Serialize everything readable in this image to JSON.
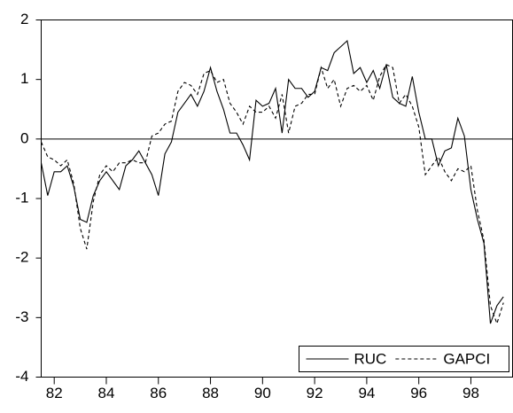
{
  "chart_data": {
    "type": "line",
    "x": [
      81.5,
      81.75,
      82,
      82.25,
      82.5,
      82.75,
      83,
      83.25,
      83.5,
      83.75,
      84,
      84.25,
      84.5,
      84.75,
      85,
      85.25,
      85.5,
      85.75,
      86,
      86.25,
      86.5,
      86.75,
      87,
      87.25,
      87.5,
      87.75,
      88,
      88.25,
      88.5,
      88.75,
      89,
      89.25,
      89.5,
      89.75,
      90,
      90.25,
      90.5,
      90.75,
      91,
      91.25,
      91.5,
      91.75,
      92,
      92.25,
      92.5,
      92.75,
      93,
      93.25,
      93.5,
      93.75,
      94,
      94.25,
      94.5,
      94.75,
      95,
      95.25,
      95.5,
      95.75,
      96,
      96.25,
      96.5,
      96.75,
      97,
      97.25,
      97.5,
      97.75,
      98,
      98.25,
      98.5,
      98.75,
      99,
      99.25
    ],
    "series": [
      {
        "name": "RUC",
        "color": "#000000",
        "dash": "none",
        "values": [
          -0.4,
          -0.95,
          -0.55,
          -0.55,
          -0.45,
          -0.8,
          -1.35,
          -1.4,
          -0.95,
          -0.7,
          -0.55,
          -0.7,
          -0.85,
          -0.45,
          -0.35,
          -0.2,
          -0.4,
          -0.6,
          -0.95,
          -0.25,
          -0.05,
          0.45,
          0.6,
          0.75,
          0.55,
          0.8,
          1.2,
          0.8,
          0.5,
          0.1,
          0.1,
          -0.1,
          -0.35,
          0.65,
          0.55,
          0.6,
          0.85,
          0.1,
          1.0,
          0.85,
          0.85,
          0.7,
          0.8,
          1.2,
          1.15,
          1.45,
          1.55,
          1.65,
          1.1,
          1.2,
          0.95,
          1.15,
          0.85,
          1.25,
          0.7,
          0.6,
          0.55,
          1.05,
          0.45,
          0.0,
          0.0,
          -0.45,
          -0.2,
          -0.15,
          0.35,
          0.05,
          -0.85,
          -1.35,
          -1.75,
          -3.1,
          -2.8,
          -2.65
        ]
      },
      {
        "name": "GAPCI",
        "color": "#000000",
        "dash": "4,3",
        "values": [
          -0.05,
          -0.3,
          -0.35,
          -0.45,
          -0.35,
          -0.75,
          -1.5,
          -1.85,
          -1.05,
          -0.6,
          -0.45,
          -0.55,
          -0.4,
          -0.4,
          -0.35,
          -0.4,
          -0.4,
          0.05,
          0.1,
          0.25,
          0.3,
          0.8,
          0.95,
          0.9,
          0.75,
          1.1,
          1.15,
          0.95,
          1.0,
          0.6,
          0.45,
          0.25,
          0.55,
          0.45,
          0.45,
          0.55,
          0.35,
          0.75,
          0.1,
          0.55,
          0.6,
          0.75,
          0.75,
          1.2,
          0.85,
          1.0,
          0.55,
          0.85,
          0.9,
          0.8,
          0.9,
          0.65,
          1.05,
          1.25,
          1.2,
          0.6,
          0.75,
          0.55,
          0.2,
          -0.6,
          -0.45,
          -0.3,
          -0.55,
          -0.7,
          -0.5,
          -0.55,
          -0.45,
          -1.2,
          -1.7,
          -2.8,
          -3.1,
          -2.75
        ]
      }
    ],
    "xlim": [
      81.5,
      99.6
    ],
    "xticks": [
      82,
      84,
      86,
      88,
      90,
      92,
      94,
      96,
      98
    ],
    "ylim": [
      -4,
      2
    ],
    "yticks": [
      -4,
      -3,
      -2,
      -1,
      0,
      1,
      2
    ],
    "zero_line": true,
    "legend": "bottom-right"
  }
}
